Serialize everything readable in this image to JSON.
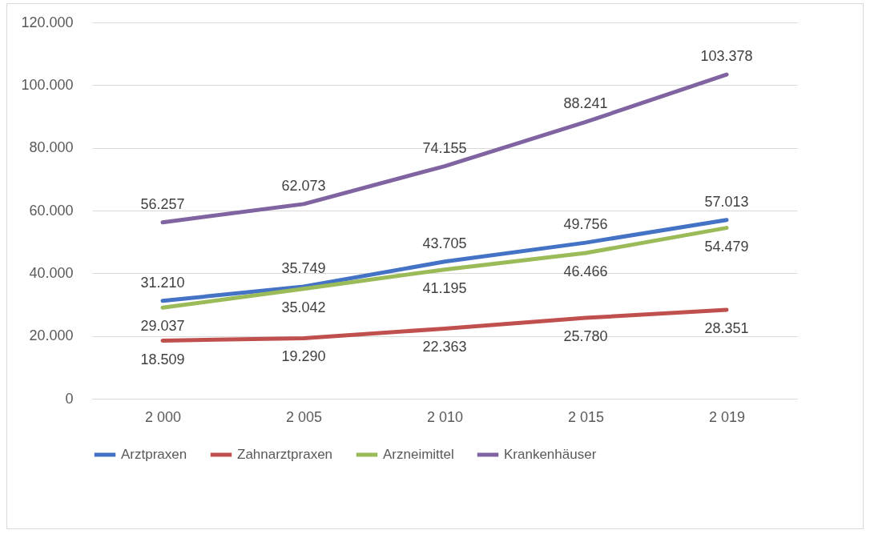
{
  "chart_data": {
    "type": "line",
    "categories": [
      "2 000",
      "2 005",
      "2 010",
      "2 015",
      "2 019"
    ],
    "ylim": [
      0,
      120000
    ],
    "yticks": [
      0,
      {
        "value": 20000,
        "label": "20.000"
      },
      {
        "value": 40000,
        "label": "40.000"
      },
      {
        "value": 60000,
        "label": "60.000"
      },
      {
        "value": 80000,
        "label": "80.000"
      },
      {
        "value": 100000,
        "label": "100.000"
      },
      {
        "value": 120000,
        "label": "120.000"
      }
    ],
    "grid": "y",
    "legend": "bottom",
    "marker": "none",
    "line_style": "solid",
    "series": [
      {
        "name": "Arztpraxen",
        "color": "#4472c4",
        "values": [
          31210,
          35749,
          43705,
          49756,
          57013
        ],
        "value_labels": [
          "31.210",
          "35.749",
          "43.705",
          "49.756",
          "57.013"
        ]
      },
      {
        "name": "Zahnarztpraxen",
        "color": "#c0504d",
        "values": [
          18509,
          19290,
          22363,
          25780,
          28351
        ],
        "value_labels": [
          "18.509",
          "19.290",
          "22.363",
          "25.780",
          "28.351"
        ]
      },
      {
        "name": "Arzneimittel",
        "color": "#9bbb59",
        "values": [
          29037,
          35042,
          41195,
          46466,
          54479
        ],
        "value_labels": [
          "29.037",
          "35.042",
          "41.195",
          "46.466",
          "54.479"
        ]
      },
      {
        "name": "Krankenhäuser",
        "color": "#8064a2",
        "values": [
          56257,
          62073,
          74155,
          88241,
          103378
        ],
        "value_labels": [
          "56.257",
          "62.073",
          "74.155",
          "88.241",
          "103.378"
        ]
      }
    ]
  }
}
